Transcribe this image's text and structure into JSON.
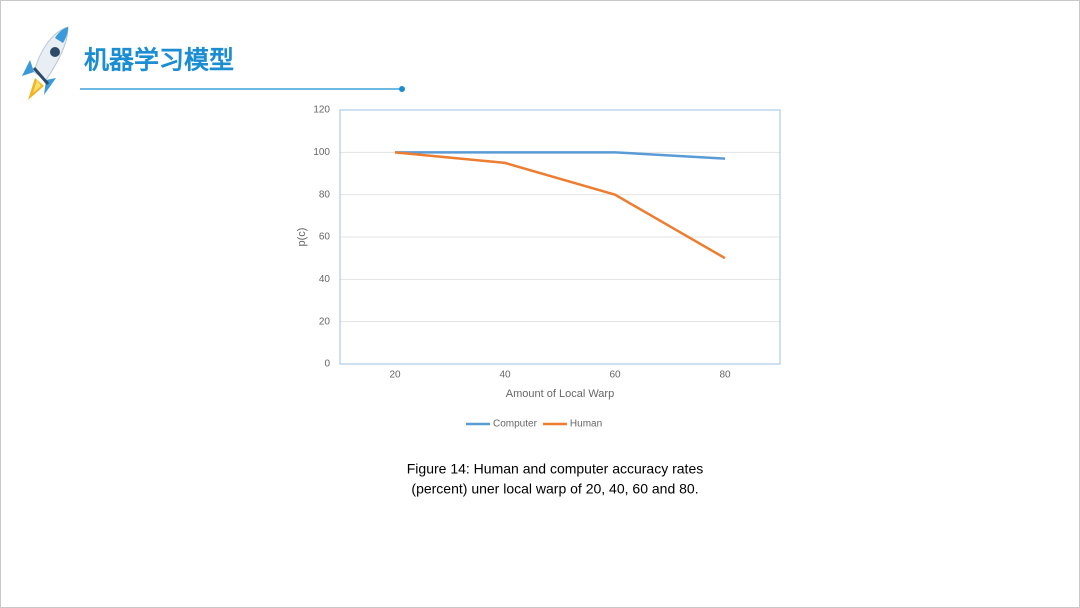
{
  "slide_title": "机器学习模型",
  "caption": [
    "Figure 14: Human and computer accuracy rates",
    "(percent) uner local warp of 20, 40, 60 and 80."
  ],
  "chart_data": {
    "type": "line",
    "xlabel": "Amount of Local Warp",
    "ylabel": "p(c)",
    "categories": [
      "20",
      "40",
      "60",
      "80"
    ],
    "series": [
      {
        "name": "Computer",
        "color": "#5b9bd5",
        "values": [
          100,
          100,
          100,
          97
        ]
      },
      {
        "name": "Human",
        "color": "#ed7d31",
        "values": [
          100,
          95,
          80,
          50
        ]
      }
    ],
    "ylim": [
      0,
      120
    ],
    "yticks": [
      0,
      20,
      40,
      60,
      80,
      100,
      120
    ],
    "grid": true,
    "legend": "bottom"
  }
}
